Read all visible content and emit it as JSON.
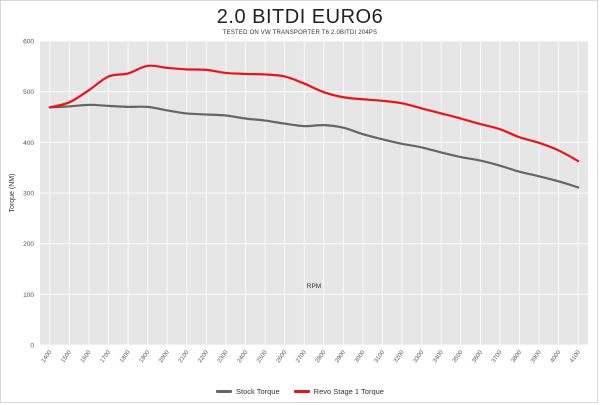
{
  "chart_data": {
    "type": "line",
    "title": "2.0 BITDI EURO6",
    "subtitle": "TESTED ON VW TRANSPORTER T6 2.0BITDI 204PS",
    "xlabel": "RPM",
    "ylabel": "Torque (NM)",
    "ylim": [
      0,
      600
    ],
    "yticks": [
      0,
      100,
      200,
      300,
      400,
      500,
      600
    ],
    "grid": true,
    "legend_position": "bottom",
    "x": [
      1400,
      1500,
      1600,
      1700,
      1800,
      1900,
      2000,
      2100,
      2200,
      2300,
      2400,
      2500,
      2600,
      2700,
      2800,
      2900,
      3000,
      3100,
      3200,
      3300,
      3400,
      3500,
      3600,
      3700,
      3800,
      3900,
      4000,
      4100
    ],
    "series": [
      {
        "name": "Stock Torque",
        "color": "#666666",
        "values": [
          469,
          471,
          474,
          472,
          470,
          470,
          463,
          457,
          455,
          453,
          447,
          443,
          437,
          432,
          434,
          429,
          416,
          406,
          397,
          390,
          380,
          371,
          364,
          354,
          342,
          333,
          323,
          311
        ]
      },
      {
        "name": "Revo Stage 1 Torque",
        "color": "#e8141b",
        "values": [
          469,
          479,
          503,
          530,
          536,
          551,
          547,
          544,
          543,
          537,
          535,
          534,
          530,
          516,
          499,
          489,
          485,
          482,
          477,
          467,
          457,
          447,
          436,
          426,
          410,
          399,
          384,
          363
        ]
      }
    ]
  }
}
